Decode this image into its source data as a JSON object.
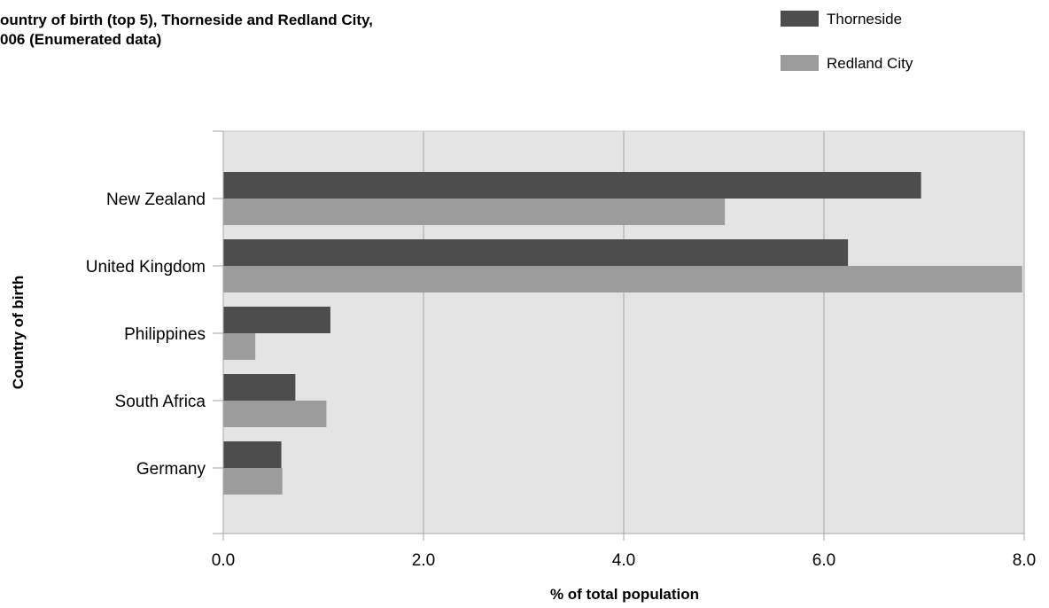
{
  "chart_data": {
    "type": "bar",
    "orientation": "horizontal",
    "title_lines": [
      "ountry of birth (top 5), Thorneside and Redland City,",
      "006 (Enumerated data)"
    ],
    "xlabel": "% of total population",
    "ylabel": "Country of birth",
    "categories": [
      "New Zealand",
      "United Kingdom",
      "Philippines",
      "South Africa",
      "Germany"
    ],
    "series": [
      {
        "name": "Thorneside",
        "color": "#4d4d4d",
        "values": [
          6.97,
          6.24,
          1.07,
          0.72,
          0.58
        ]
      },
      {
        "name": "Redland City",
        "color": "#9c9c9c",
        "values": [
          5.01,
          7.98,
          0.32,
          1.03,
          0.59
        ]
      }
    ],
    "xlim": [
      0,
      8.0
    ],
    "xticks": [
      "0.0",
      "2.0",
      "4.0",
      "6.0",
      "8.0"
    ],
    "grid": true,
    "plot_background": "#e4e4e4",
    "legend_position": "top-right"
  }
}
